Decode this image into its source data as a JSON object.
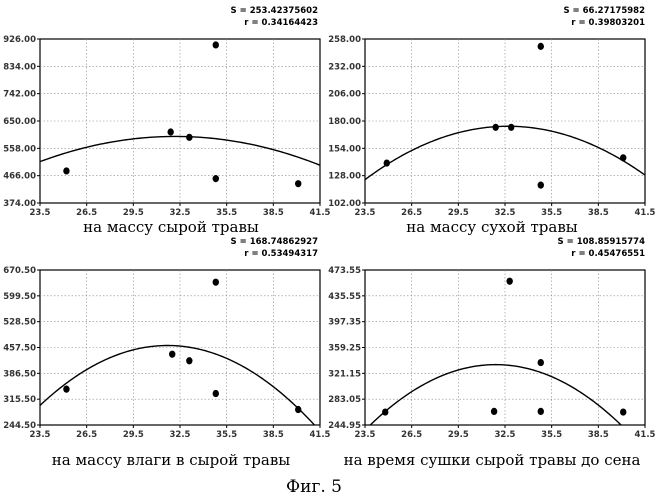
{
  "figure_label": "Фиг. 5",
  "chart_data": [
    {
      "type": "scatter",
      "caption": "на массу сырой травы",
      "stats": {
        "s": "S = 253.42375602",
        "r": "r = 0.34164423"
      },
      "x_ticks": [
        "23.5",
        "26.5",
        "29.5",
        "32.5",
        "35.5",
        "38.5",
        "41.5"
      ],
      "y_ticks": [
        "374.00",
        "466.00",
        "558.00",
        "650.00",
        "742.00",
        "834.00",
        "926.00"
      ],
      "xlim": [
        23.5,
        41.5
      ],
      "ylim": [
        374,
        926
      ],
      "points": [
        {
          "x": 25.2,
          "y": 482
        },
        {
          "x": 31.9,
          "y": 613
        },
        {
          "x": 33.1,
          "y": 595
        },
        {
          "x": 34.8,
          "y": 906
        },
        {
          "x": 34.8,
          "y": 456
        },
        {
          "x": 40.1,
          "y": 439
        }
      ],
      "fit": {
        "type": "quadratic",
        "vertex_x": 32.2,
        "vertex_y": 598,
        "a": -1.12
      },
      "grid": true
    },
    {
      "type": "scatter",
      "caption": "на массу сухой травы",
      "stats": {
        "s": "S = 66.27175982",
        "r": "r = 0.39803201"
      },
      "x_ticks": [
        "23.5",
        "26.5",
        "29.5",
        "32.5",
        "35.5",
        "38.5",
        "41.5"
      ],
      "y_ticks": [
        "102.00",
        "128.00",
        "154.00",
        "180.00",
        "206.00",
        "232.00",
        "258.00"
      ],
      "xlim": [
        23.5,
        41.5
      ],
      "ylim": [
        102,
        258
      ],
      "points": [
        {
          "x": 24.9,
          "y": 140
        },
        {
          "x": 31.9,
          "y": 174
        },
        {
          "x": 32.9,
          "y": 174
        },
        {
          "x": 34.8,
          "y": 251
        },
        {
          "x": 34.8,
          "y": 119
        },
        {
          "x": 40.1,
          "y": 145
        }
      ],
      "fit": {
        "type": "quadratic",
        "vertex_x": 32.7,
        "vertex_y": 175,
        "a": -0.6
      },
      "grid": true
    },
    {
      "type": "scatter",
      "caption": "на массу влаги в сырой травы",
      "stats": {
        "s": "S = 168.74862927",
        "r": "r = 0.53494317"
      },
      "x_ticks": [
        "23.5",
        "26.5",
        "29.5",
        "32.5",
        "35.5",
        "38.5",
        "41.5"
      ],
      "y_ticks": [
        "244.50",
        "315.50",
        "386.50",
        "457.50",
        "528.50",
        "599.50",
        "670.50"
      ],
      "xlim": [
        23.5,
        41.5
      ],
      "ylim": [
        244.5,
        670.5
      ],
      "points": [
        {
          "x": 25.2,
          "y": 343
        },
        {
          "x": 32.0,
          "y": 439
        },
        {
          "x": 33.1,
          "y": 421
        },
        {
          "x": 34.8,
          "y": 637
        },
        {
          "x": 34.8,
          "y": 331
        },
        {
          "x": 40.1,
          "y": 287
        }
      ],
      "fit": {
        "type": "quadratic",
        "vertex_x": 31.7,
        "vertex_y": 463,
        "a": -2.45
      },
      "grid": true
    },
    {
      "type": "scatter",
      "caption": "на время сушки сырой травы до сена",
      "stats": {
        "s": "S = 108.85915774",
        "r": "r = 0.45476551"
      },
      "x_ticks": [
        "23.5",
        "26.5",
        "29.5",
        "32.5",
        "35.5",
        "38.5",
        "41.5"
      ],
      "y_ticks": [
        "244.95",
        "283.05",
        "321.15",
        "359.25",
        "397.35",
        "435.55",
        "473.55"
      ],
      "xlim": [
        23.5,
        41.5
      ],
      "ylim": [
        244.95,
        473.55
      ],
      "points": [
        {
          "x": 24.8,
          "y": 264
        },
        {
          "x": 31.8,
          "y": 265
        },
        {
          "x": 32.8,
          "y": 457
        },
        {
          "x": 34.8,
          "y": 337
        },
        {
          "x": 34.8,
          "y": 265
        },
        {
          "x": 40.1,
          "y": 264
        }
      ],
      "fit": {
        "type": "quadratic",
        "vertex_x": 31.9,
        "vertex_y": 334,
        "a": -1.37
      },
      "grid": true
    }
  ]
}
